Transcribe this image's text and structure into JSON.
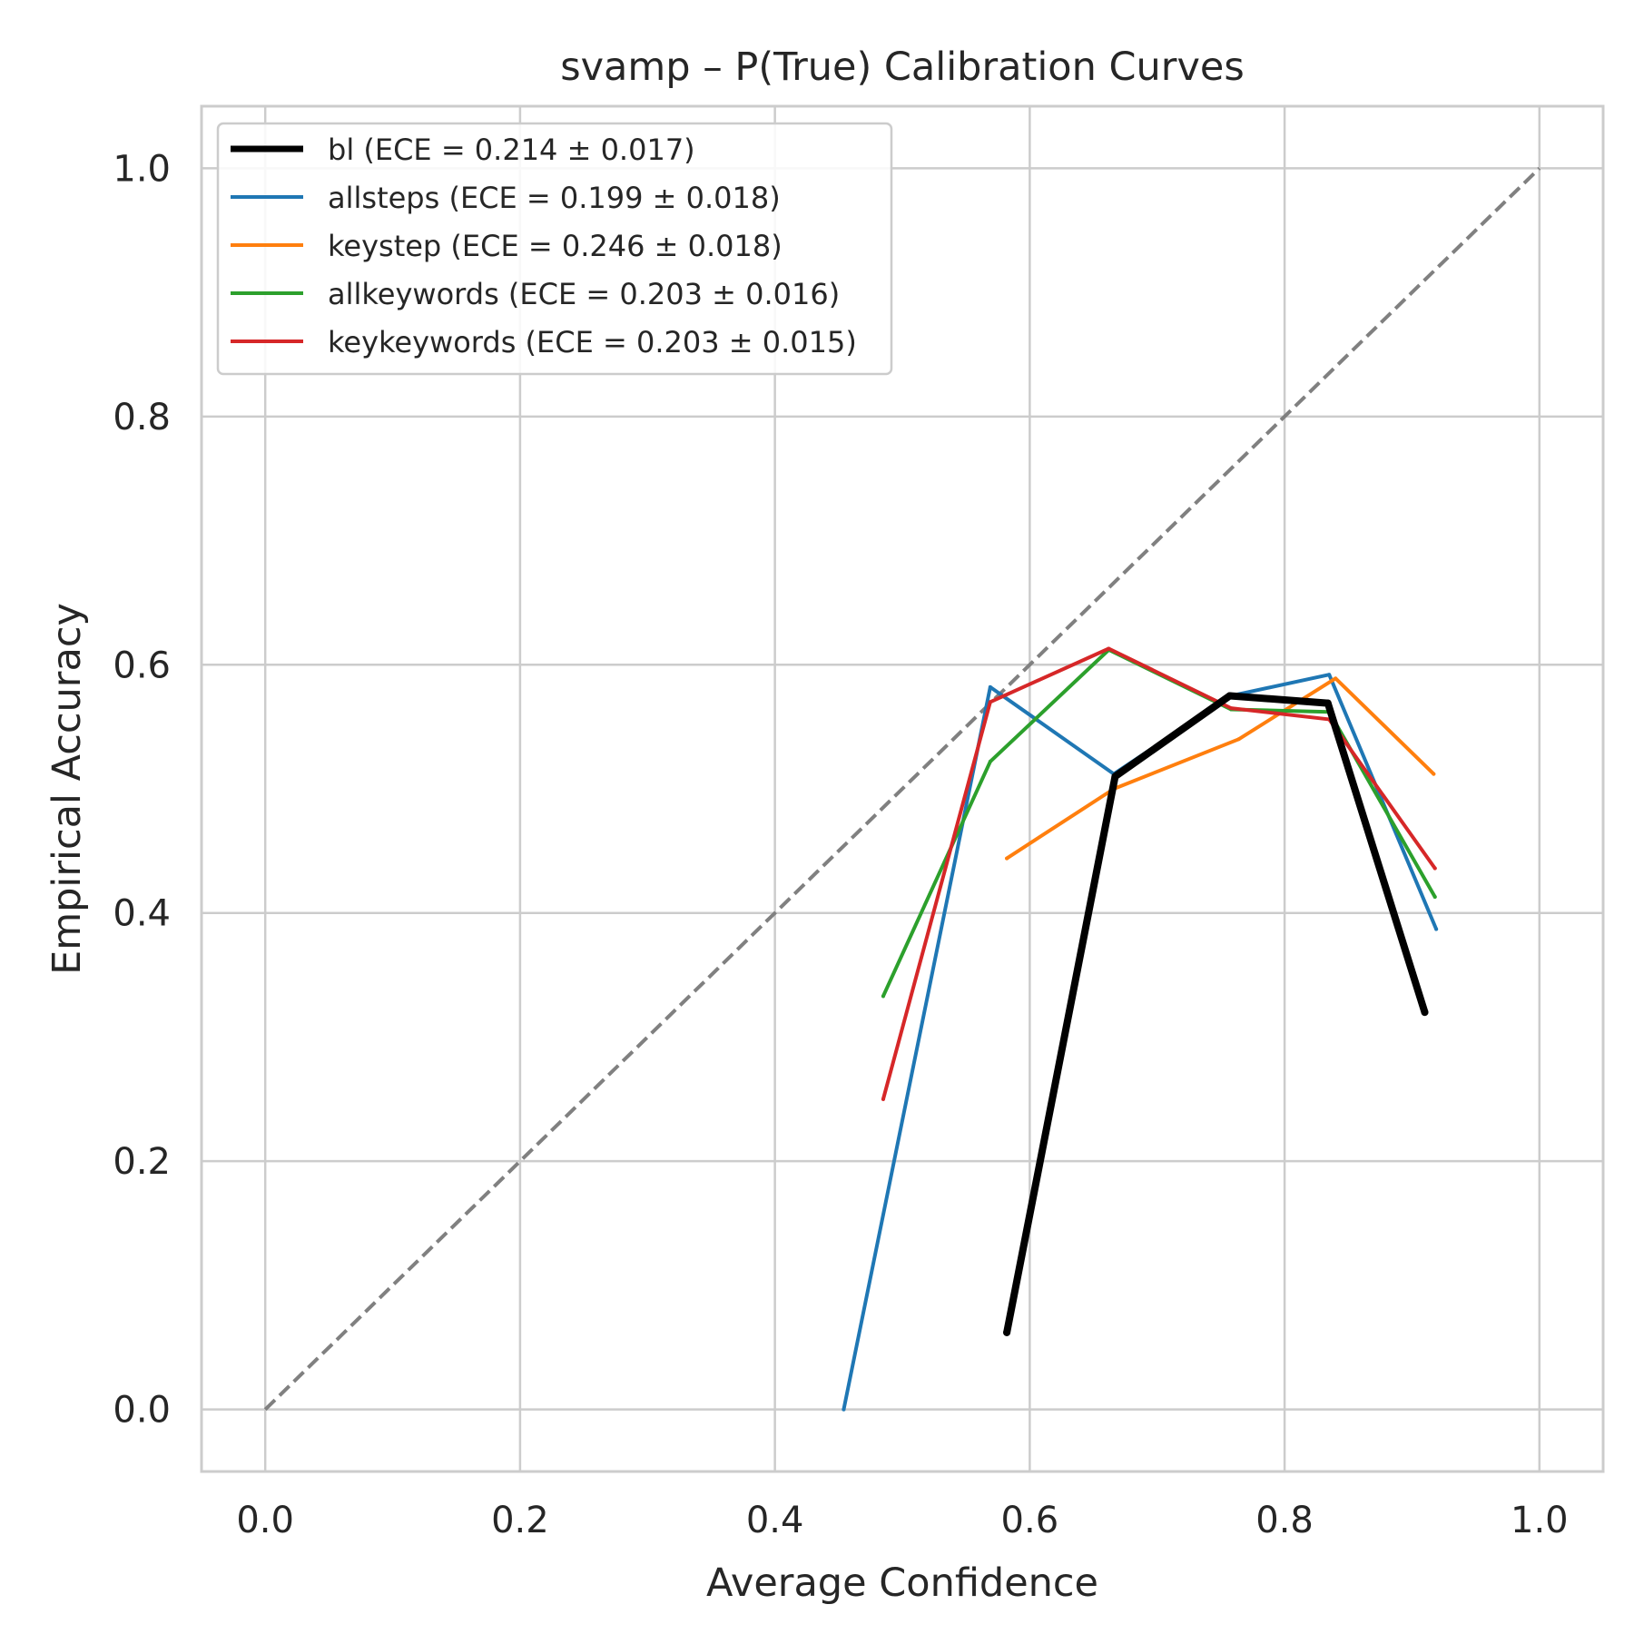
{
  "chart_data": {
    "type": "line",
    "title": "svamp – P(True) Calibration Curves",
    "xlabel": "Average Confidence",
    "ylabel": "Empirical Accuracy",
    "xlim": [
      -0.05,
      1.05
    ],
    "ylim": [
      -0.05,
      1.05
    ],
    "xticks": [
      "0.0",
      "0.2",
      "0.4",
      "0.6",
      "0.8",
      "1.0"
    ],
    "yticks": [
      "0.0",
      "0.2",
      "0.4",
      "0.6",
      "0.8",
      "1.0"
    ],
    "grid": true,
    "legend_position": "top-left",
    "reference_line": {
      "x": [
        0,
        1
      ],
      "y": [
        0,
        1
      ],
      "color": "#808080",
      "style": "dashed"
    },
    "series": [
      {
        "name": "bl (ECE = 0.214 ± 0.017)",
        "color": "#000000",
        "bold": true,
        "x": [
          0.582,
          0.667,
          0.757,
          0.834,
          0.91
        ],
        "y": [
          0.062,
          0.51,
          0.575,
          0.569,
          0.32
        ]
      },
      {
        "name": "allsteps (ECE = 0.199 ± 0.018)",
        "color": "#1f77b4",
        "bold": false,
        "x": [
          0.454,
          0.569,
          0.666,
          0.758,
          0.835,
          0.919
        ],
        "y": [
          0.0,
          0.582,
          0.512,
          0.575,
          0.592,
          0.387
        ]
      },
      {
        "name": "keystep (ECE = 0.246 ± 0.018)",
        "color": "#ff7f0e",
        "bold": false,
        "x": [
          0.582,
          0.666,
          0.764,
          0.84,
          0.917
        ],
        "y": [
          0.444,
          0.5,
          0.54,
          0.589,
          0.512
        ]
      },
      {
        "name": "allkeywords (ECE = 0.203 ± 0.016)",
        "color": "#2ca02c",
        "bold": false,
        "x": [
          0.485,
          0.569,
          0.662,
          0.758,
          0.835,
          0.918
        ],
        "y": [
          0.333,
          0.522,
          0.612,
          0.564,
          0.562,
          0.413
        ]
      },
      {
        "name": "keykeywords (ECE = 0.203 ± 0.015)",
        "color": "#d62728",
        "bold": false,
        "x": [
          0.485,
          0.569,
          0.662,
          0.758,
          0.835,
          0.918
        ],
        "y": [
          0.25,
          0.57,
          0.613,
          0.565,
          0.556,
          0.436
        ]
      }
    ]
  }
}
